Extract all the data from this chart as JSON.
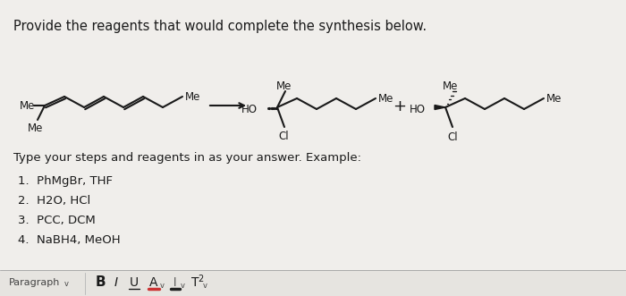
{
  "title": "Provide the reagents that would complete the synthesis below.",
  "title_fontsize": 10.5,
  "bg_color": "#f0eeeb",
  "text_color": "#1a1a1a",
  "body_text": [
    "Type your steps and reagents in as your answer. Example:",
    "1.  PhMgBr, THF",
    "2.  H2O, HCl",
    "3.  PCC, DCM",
    "4.  NaBH4, MeOH"
  ],
  "figsize": [
    7.0,
    3.31
  ],
  "dpi": 100
}
